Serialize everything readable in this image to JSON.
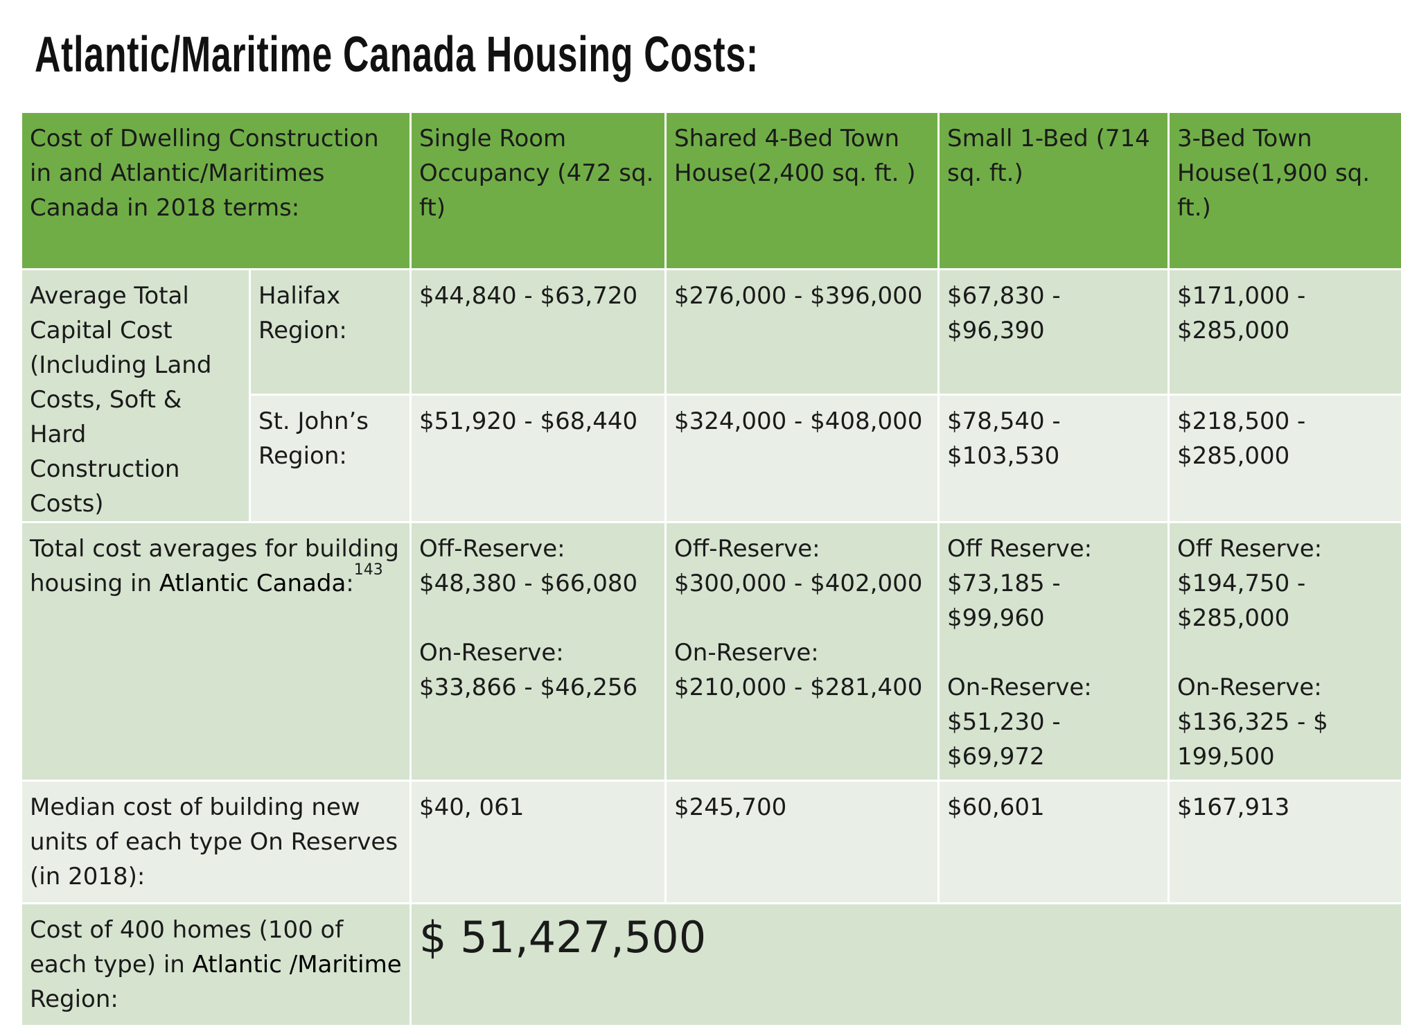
{
  "title": "Atlantic/Maritime Canada Housing Costs:",
  "header": {
    "label": "Cost of  Dwelling Construction in and Atlantic/Maritimes Canada in 2018 terms:",
    "columns": [
      "Single Room Occupancy (472 sq. ft)",
      "Shared 4-Bed Town House(2,400 sq. ft. )",
      "Small 1-Bed (714 sq. ft.)",
      "3-Bed Town House(1,900 sq. ft.)"
    ]
  },
  "capital_cost": {
    "label": "Average Total Capital Cost (Including Land Costs, Soft & Hard Construction Costs)",
    "halifax": {
      "label": "Halifax Region:",
      "values": [
        "$44,840 - $63,720",
        "$276,000 - $396,000",
        "$67,830 - $96,390",
        "$171,000  - $285,000"
      ]
    },
    "stjohns": {
      "label": "St. John’s Region:",
      "values": [
        "$51,920 - $68,440",
        "$324,000 - $408,000",
        "$78,540 - $103,530",
        "$218,500 - $285,000"
      ]
    }
  },
  "total_avg": {
    "label_pre": "Total cost averages for building housing in ",
    "label_bold": "Atlantic Canada",
    "label_post": ":",
    "footnote": "143",
    "off_labels": [
      "Off-Reserve:",
      "Off-Reserve:",
      "Off Reserve:",
      "Off Reserve:"
    ],
    "off_values": [
      "$48,380 - $66,080",
      "$300,000 - $402,000",
      "$73,185 - $99,960",
      "$194,750 - $285,000"
    ],
    "on_labels": [
      "On-Reserve:",
      "On-Reserve:",
      "On-Reserve:",
      "On-Reserve:"
    ],
    "on_values": [
      "$33,866 - $46,256",
      "$210,000 - $281,400",
      "$51,230 - $69,972",
      "$136,325 - $ 199,500"
    ]
  },
  "median": {
    "label": "Median cost of building new units of each type On Reserves (in 2018):",
    "values": [
      "$40, 061",
      "$245,700",
      "$60,601",
      "$167,913"
    ]
  },
  "total400": {
    "label_pre": "Cost of 400 homes (100 of each type) in ",
    "label_bold": "Atlantic /Maritime",
    "label_post": " Region:",
    "value": "$ 51,427,500"
  }
}
